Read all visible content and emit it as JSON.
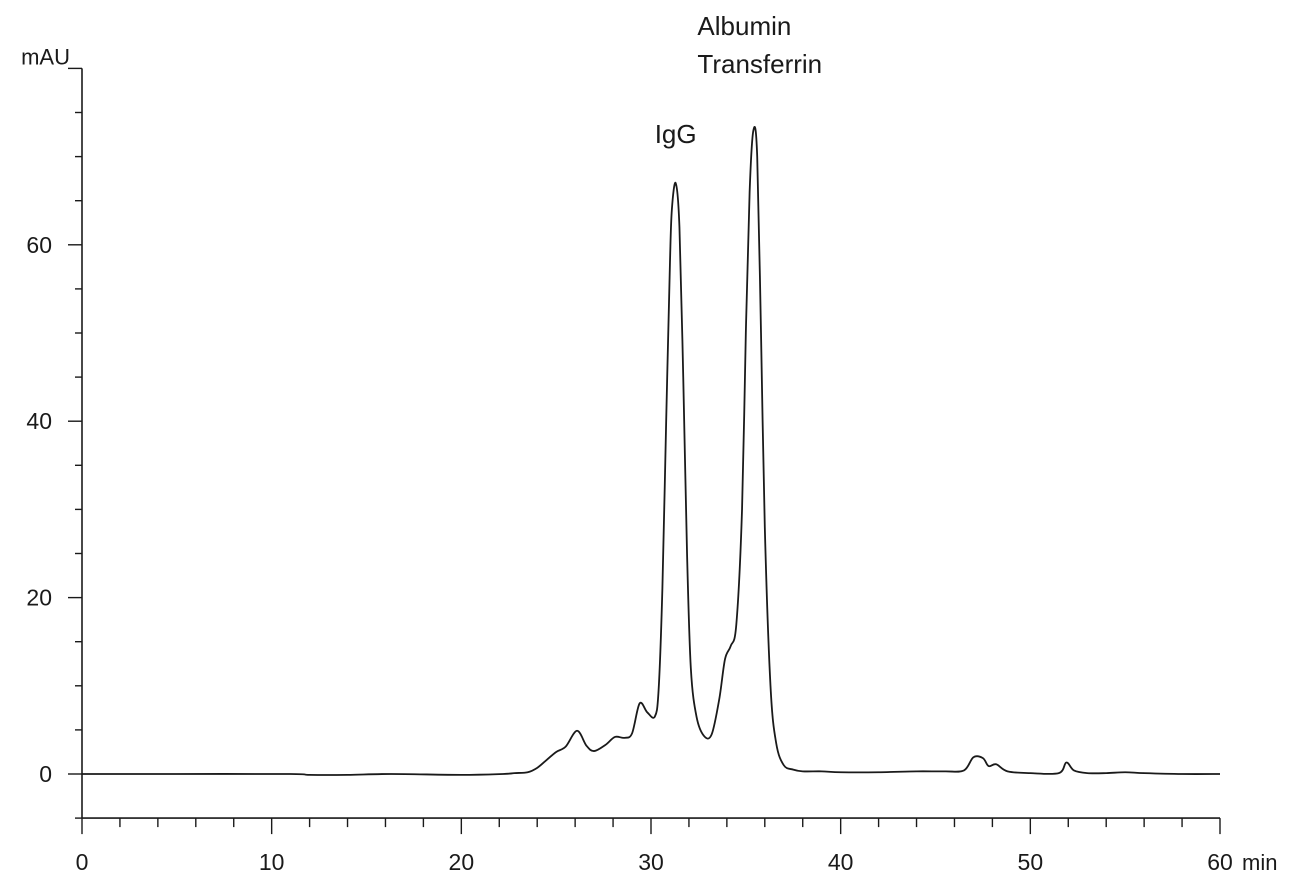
{
  "chart_data": {
    "type": "line",
    "title": "",
    "xlabel": "min",
    "ylabel": "mAU",
    "xlim": [
      0,
      60
    ],
    "ylim": [
      -5,
      80
    ],
    "x_ticks": [
      "0",
      "10",
      "20",
      "30",
      "40",
      "50",
      "60"
    ],
    "y_ticks": [
      "0",
      "20",
      "40",
      "60"
    ],
    "grid": false,
    "line_color": "#1a1a1a",
    "annotations": [
      {
        "text": "IgG",
        "x": 31.3,
        "y": 67
      },
      {
        "text": "Albumin",
        "x": 35.4,
        "y": 73
      },
      {
        "text": "Transferrin",
        "x": 35.4,
        "y": 73
      }
    ],
    "series": [
      {
        "x": [
          0,
          5,
          11,
          12,
          14,
          16.3,
          20,
          22.2,
          22.8,
          23.5,
          24.0,
          24.5,
          25.0,
          25.5,
          26.1,
          26.6,
          27.0,
          27.6,
          28.1,
          28.6,
          29.0,
          29.4,
          29.8,
          30.2,
          30.4,
          30.6,
          30.8,
          31.0,
          31.1,
          31.3,
          31.5,
          31.7,
          31.9,
          32.1,
          32.4,
          32.8,
          33.2,
          33.6,
          33.9,
          34.2,
          34.5,
          34.8,
          35.0,
          35.2,
          35.4,
          35.6,
          35.8,
          36.0,
          36.3,
          36.6,
          37.0,
          37.5,
          38.0,
          39.0,
          40.0,
          42.0,
          44.0,
          45.5,
          46.5,
          47.0,
          47.5,
          47.8,
          48.2,
          48.8,
          50.0,
          51.5,
          51.9,
          52.3,
          53.0,
          54.0,
          55.0,
          56.0,
          58.0,
          60.0
        ],
        "y": [
          0,
          0,
          0,
          -0.1,
          -0.1,
          0,
          -0.1,
          0,
          0.1,
          0.2,
          0.7,
          1.6,
          2.5,
          3.1,
          4.9,
          3.2,
          2.6,
          3.3,
          4.2,
          4.1,
          4.6,
          8.0,
          7.0,
          6.5,
          9.5,
          21.0,
          40.0,
          58.0,
          64.0,
          67.0,
          62.0,
          45.0,
          25.0,
          12.0,
          6.5,
          4.3,
          4.5,
          8.5,
          13.0,
          14.5,
          17.0,
          30.0,
          50.0,
          66.0,
          73.0,
          70.0,
          50.0,
          28.0,
          10.0,
          3.5,
          1.0,
          0.5,
          0.3,
          0.3,
          0.2,
          0.2,
          0.3,
          0.3,
          0.4,
          1.9,
          1.8,
          0.9,
          1.1,
          0.3,
          0.1,
          0.1,
          1.3,
          0.4,
          0.1,
          0.1,
          0.2,
          0.1,
          0,
          0
        ]
      }
    ]
  }
}
